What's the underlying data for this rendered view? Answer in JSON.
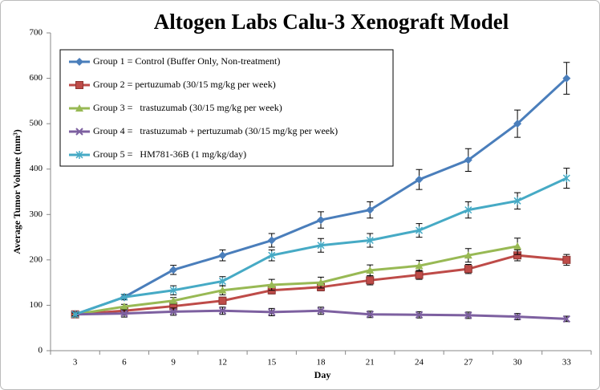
{
  "chart_data": {
    "type": "line",
    "title": "Altogen Labs Calu-3 Xenograft Model",
    "x_label": "Day",
    "y_label": "Average Tumor Volume (mm³)",
    "categories": [
      "3",
      "6",
      "9",
      "12",
      "15",
      "18",
      "21",
      "24",
      "27",
      "30",
      "33"
    ],
    "ylim": [
      0,
      700
    ],
    "yticks": [
      0,
      100,
      200,
      300,
      400,
      500,
      600,
      700
    ],
    "series": [
      {
        "name": "Group 1 = Control (Buffer Only, Non-treatment)",
        "color": "#4a7ebb",
        "marker": "diamond",
        "values": [
          80,
          118,
          178,
          210,
          243,
          288,
          310,
          377,
          420,
          500,
          600
        ],
        "errors": [
          3,
          6,
          10,
          12,
          15,
          18,
          18,
          22,
          25,
          30,
          35
        ]
      },
      {
        "name": "Group 2 = pertuzumab (30/15 mg/kg per week)",
        "color": "#be4b48",
        "marker": "square",
        "values": [
          80,
          88,
          98,
          110,
          133,
          140,
          155,
          167,
          180,
          210,
          200
        ],
        "errors": [
          3,
          5,
          6,
          8,
          8,
          8,
          10,
          10,
          10,
          12,
          12
        ]
      },
      {
        "name": "Group 3 =   trastuzumab (30/15 mg/kg per week)",
        "color": "#98b954",
        "marker": "triangle",
        "values": [
          80,
          97,
          110,
          133,
          145,
          150,
          177,
          187,
          210,
          230,
          null
        ],
        "errors": [
          3,
          5,
          7,
          10,
          12,
          12,
          12,
          12,
          15,
          18,
          null
        ]
      },
      {
        "name": "Group 4 =   trastuzumab + pertuzumab (30/15 mg/kg per week)",
        "color": "#7d60a0",
        "marker": "x",
        "values": [
          80,
          82,
          86,
          88,
          85,
          88,
          80,
          79,
          78,
          75,
          70
        ],
        "errors": [
          5,
          8,
          8,
          8,
          8,
          8,
          7,
          7,
          7,
          7,
          6
        ]
      },
      {
        "name": "Group 5 =   HM781-36B (1 mg/kg/day)",
        "color": "#46aac5",
        "marker": "star",
        "values": [
          80,
          118,
          133,
          153,
          210,
          232,
          243,
          265,
          310,
          330,
          380
        ],
        "errors": [
          3,
          5,
          10,
          10,
          12,
          15,
          15,
          15,
          18,
          18,
          22
        ]
      }
    ]
  }
}
